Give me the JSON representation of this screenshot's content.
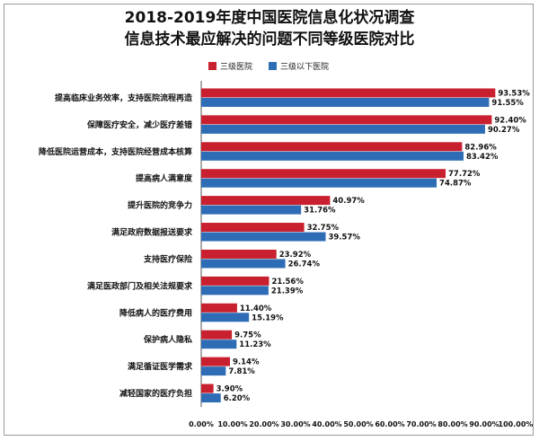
{
  "colors": {
    "series1": "#c8202f",
    "series2": "#2e6db5",
    "axis": "#555555"
  },
  "chart_data": {
    "type": "bar",
    "orientation": "horizontal",
    "title": "2018-2019年度中国医院信息化状况调查",
    "subtitle": "信息技术最应解决的问题不同等级医院对比",
    "xlim": [
      0,
      100
    ],
    "x_ticks": [
      "0.00%",
      "10.00%",
      "20.00%",
      "30.00%",
      "40.00%",
      "50.00%",
      "60.00%",
      "70.00%",
      "80.00%",
      "90.00%",
      "100.00%"
    ],
    "legend_position": "top-left",
    "categories": [
      "提高临床业务效率，支持医院流程再造",
      "保障医疗安全，减少医疗差错",
      "降低医院运营成本，支持医院经营成本核算",
      "提高病人满意度",
      "提升医院的竞争力",
      "满足政府数据报送要求",
      "支持医疗保险",
      "满足医政部门及相关法规要求",
      "降低病人的医疗费用",
      "保护病人隐私",
      "满足循证医学需求",
      "减轻国家的医疗负担"
    ],
    "series": [
      {
        "name": "三级医院",
        "values": [
          93.53,
          92.4,
          82.96,
          77.72,
          40.97,
          32.75,
          23.92,
          21.56,
          11.4,
          9.75,
          9.14,
          3.9
        ],
        "labels": [
          "93.53%",
          "92.40%",
          "82.96%",
          "77.72%",
          "40.97%",
          "32.75%",
          "23.92%",
          "21.56%",
          "11.40%",
          "9.75%",
          "9.14%",
          "3.90%"
        ]
      },
      {
        "name": "三级以下医院",
        "values": [
          91.55,
          90.27,
          83.42,
          74.87,
          31.76,
          39.57,
          26.74,
          21.39,
          15.19,
          11.23,
          7.81,
          6.2
        ],
        "labels": [
          "91.55%",
          "90.27%",
          "83.42%",
          "74.87%",
          "31.76%",
          "39.57%",
          "26.74%",
          "21.39%",
          "15.19%",
          "11.23%",
          "7.81%",
          "6.20%"
        ]
      }
    ]
  }
}
